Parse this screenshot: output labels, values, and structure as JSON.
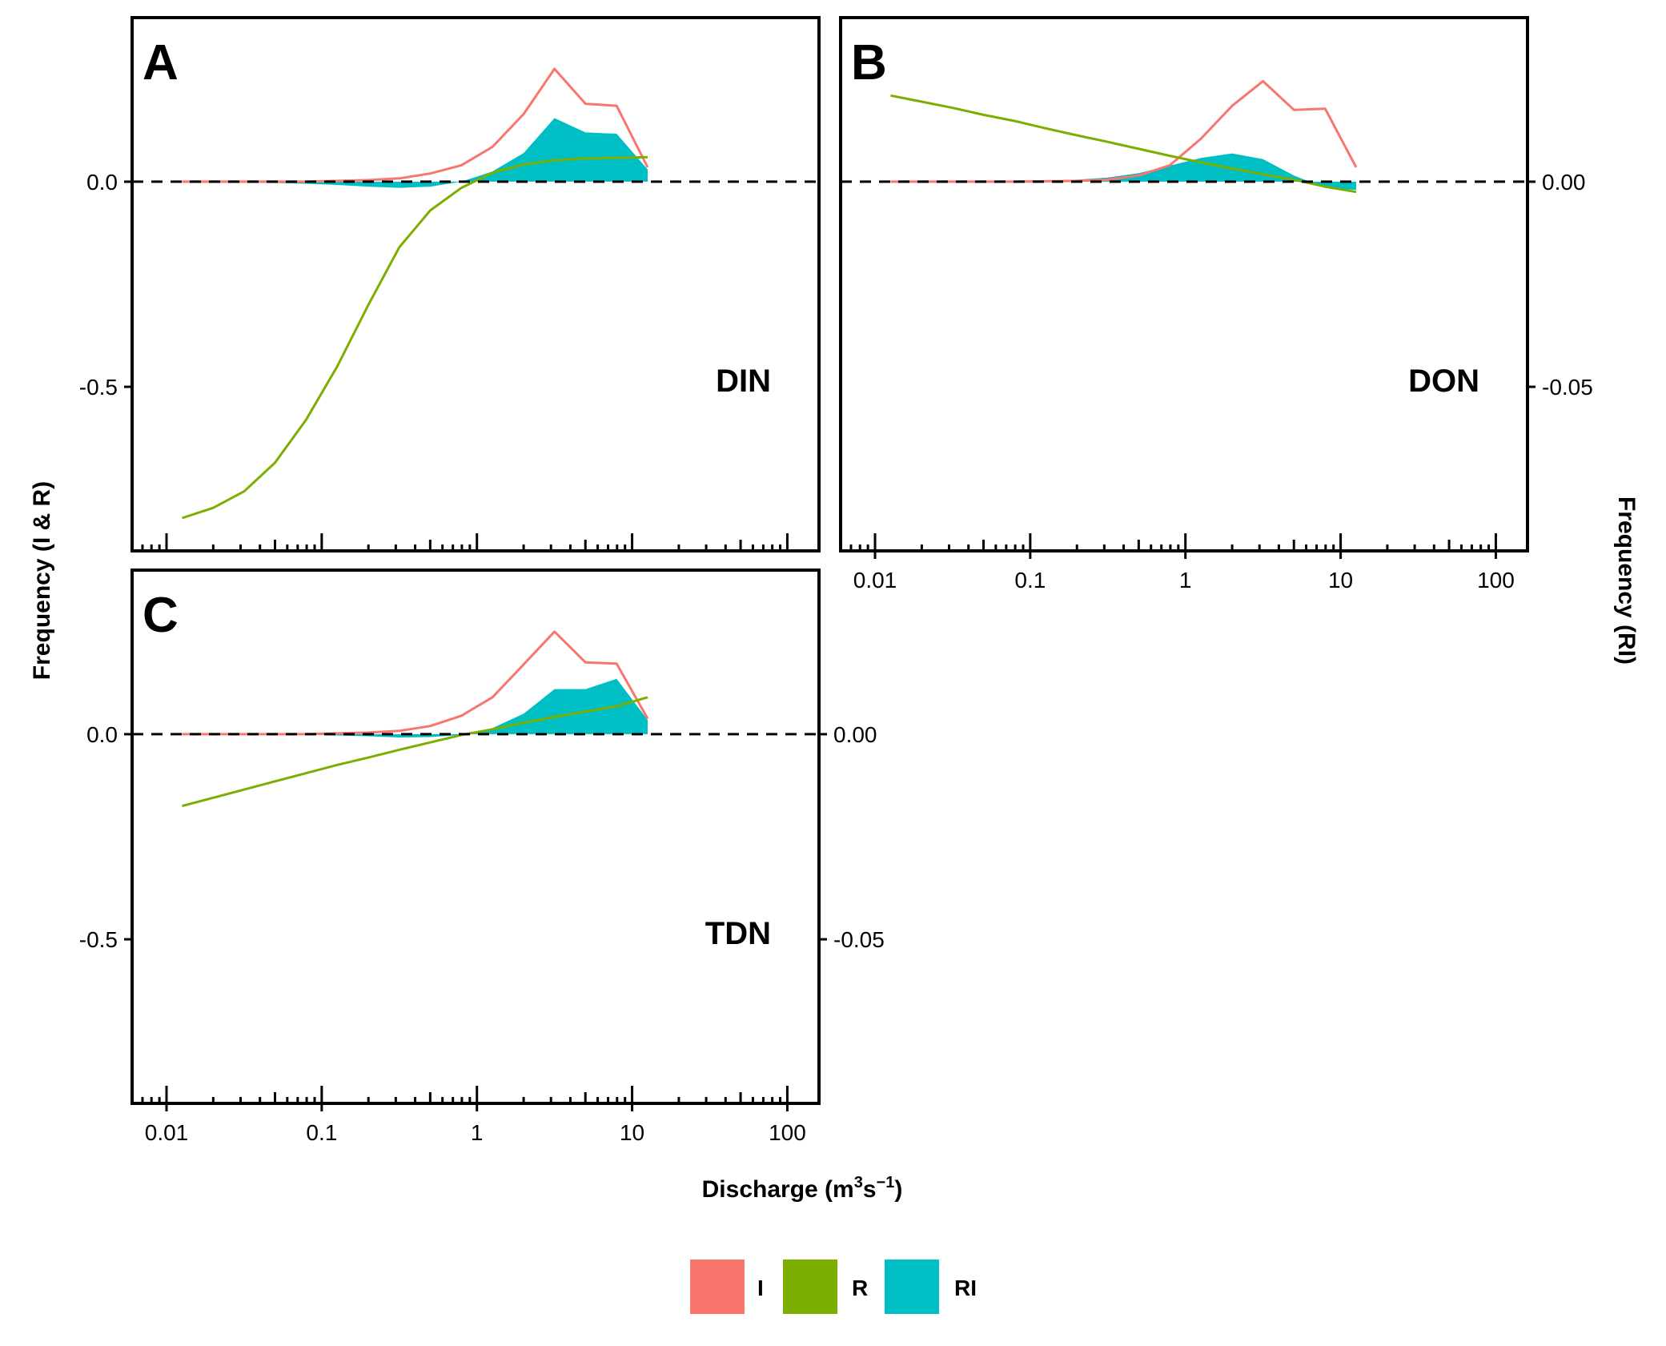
{
  "colors": {
    "I": "#F8766D",
    "R": "#7CAE00",
    "RI": "#00BFC4",
    "zero_line": "#000000",
    "frame": "#000000"
  },
  "axes": {
    "x_label_main": "Discharge (m",
    "x_label_sup1": "3",
    "x_label_mid": "s",
    "x_label_sup2": "−1",
    "x_label_end": ")",
    "y_left_label": "Frequency (I & R)",
    "y_right_label": "Frequency (RI)",
    "x_ticks": [
      "0.01",
      "0.1",
      "1",
      "10",
      "100"
    ],
    "y_left_ticks": [
      "0.0",
      "-0.5"
    ],
    "y_right_ticks": [
      "0.00",
      "-0.05"
    ]
  },
  "legend": {
    "items": [
      {
        "key": "I",
        "label": "I"
      },
      {
        "key": "R",
        "label": "R"
      },
      {
        "key": "RI",
        "label": "RI"
      }
    ]
  },
  "chart_data": [
    {
      "type": "line",
      "panel": "A",
      "label": "DIN",
      "x_scale": "log",
      "xlim": [
        0.006,
        160
      ],
      "ylim_left": [
        -0.9,
        0.4
      ],
      "ylim_right": [
        -0.09,
        0.04
      ],
      "x": [
        0.0126,
        0.02,
        0.0316,
        0.05,
        0.0794,
        0.126,
        0.2,
        0.316,
        0.5,
        0.794,
        1.26,
        2.0,
        3.16,
        5.01,
        7.94,
        12.6
      ],
      "series": [
        {
          "name": "I",
          "axis": "left",
          "values": [
            0.0,
            0.0,
            0.0,
            0.0,
            0.0,
            0.002,
            0.004,
            0.008,
            0.02,
            0.04,
            0.085,
            0.165,
            0.275,
            0.19,
            0.185,
            0.035
          ]
        },
        {
          "name": "R",
          "axis": "left",
          "values": [
            -0.82,
            -0.795,
            -0.755,
            -0.685,
            -0.58,
            -0.45,
            -0.3,
            -0.16,
            -0.07,
            -0.015,
            0.022,
            0.042,
            0.052,
            0.057,
            0.058,
            0.06
          ]
        },
        {
          "name": "RI",
          "axis": "right",
          "values": [
            0.0,
            0.0,
            -0.0002,
            -0.0003,
            -0.0005,
            -0.0008,
            -0.0012,
            -0.0015,
            -0.0012,
            0.0,
            0.0025,
            0.007,
            0.0155,
            0.012,
            0.0117,
            0.003
          ]
        }
      ]
    },
    {
      "type": "line",
      "panel": "B",
      "label": "DON",
      "x_scale": "log",
      "xlim": [
        0.006,
        160
      ],
      "ylim_left": [
        -0.9,
        0.4
      ],
      "ylim_right": [
        -0.09,
        0.04
      ],
      "x": [
        0.0126,
        0.02,
        0.0316,
        0.05,
        0.0794,
        0.126,
        0.2,
        0.316,
        0.5,
        0.794,
        1.26,
        2.0,
        3.16,
        5.01,
        7.94,
        12.6
      ],
      "series": [
        {
          "name": "I",
          "axis": "left",
          "values": [
            0.0,
            0.0,
            0.0,
            0.0,
            0.0,
            0.001,
            0.002,
            0.005,
            0.015,
            0.04,
            0.105,
            0.185,
            0.245,
            0.175,
            0.178,
            0.035
          ]
        },
        {
          "name": "R",
          "axis": "left",
          "values": [
            0.21,
            0.195,
            0.18,
            0.163,
            0.148,
            0.13,
            0.113,
            0.097,
            0.08,
            0.063,
            0.047,
            0.032,
            0.018,
            0.005,
            -0.012,
            -0.025
          ]
        },
        {
          "name": "RI",
          "axis": "right",
          "values": [
            0.0,
            0.0,
            0.0,
            0.0001,
            0.0001,
            0.0002,
            0.0005,
            0.001,
            0.0021,
            0.0039,
            0.0058,
            0.0069,
            0.0055,
            0.0015,
            -0.0015,
            -0.002
          ]
        }
      ]
    },
    {
      "type": "line",
      "panel": "C",
      "label": "TDN",
      "x_scale": "log",
      "xlim": [
        0.006,
        160
      ],
      "ylim_left": [
        -0.9,
        0.4
      ],
      "ylim_right": [
        -0.09,
        0.04
      ],
      "x": [
        0.0126,
        0.02,
        0.0316,
        0.05,
        0.0794,
        0.126,
        0.2,
        0.316,
        0.5,
        0.794,
        1.26,
        2.0,
        3.16,
        5.01,
        7.94,
        12.6
      ],
      "series": [
        {
          "name": "I",
          "axis": "left",
          "values": [
            0.0,
            0.0,
            0.0,
            0.0,
            0.0,
            0.002,
            0.004,
            0.008,
            0.02,
            0.045,
            0.09,
            0.17,
            0.25,
            0.175,
            0.172,
            0.038
          ]
        },
        {
          "name": "R",
          "axis": "left",
          "values": [
            -0.175,
            -0.155,
            -0.135,
            -0.115,
            -0.095,
            -0.075,
            -0.057,
            -0.038,
            -0.02,
            -0.002,
            0.012,
            0.028,
            0.042,
            0.055,
            0.068,
            0.09
          ]
        },
        {
          "name": "RI",
          "axis": "right",
          "values": [
            0.0,
            0.0,
            0.0,
            -0.0001,
            -0.0001,
            -0.0003,
            -0.0005,
            -0.0008,
            -0.0007,
            -0.0002,
            0.0015,
            0.005,
            0.011,
            0.011,
            0.0135,
            0.0035
          ]
        }
      ]
    }
  ]
}
